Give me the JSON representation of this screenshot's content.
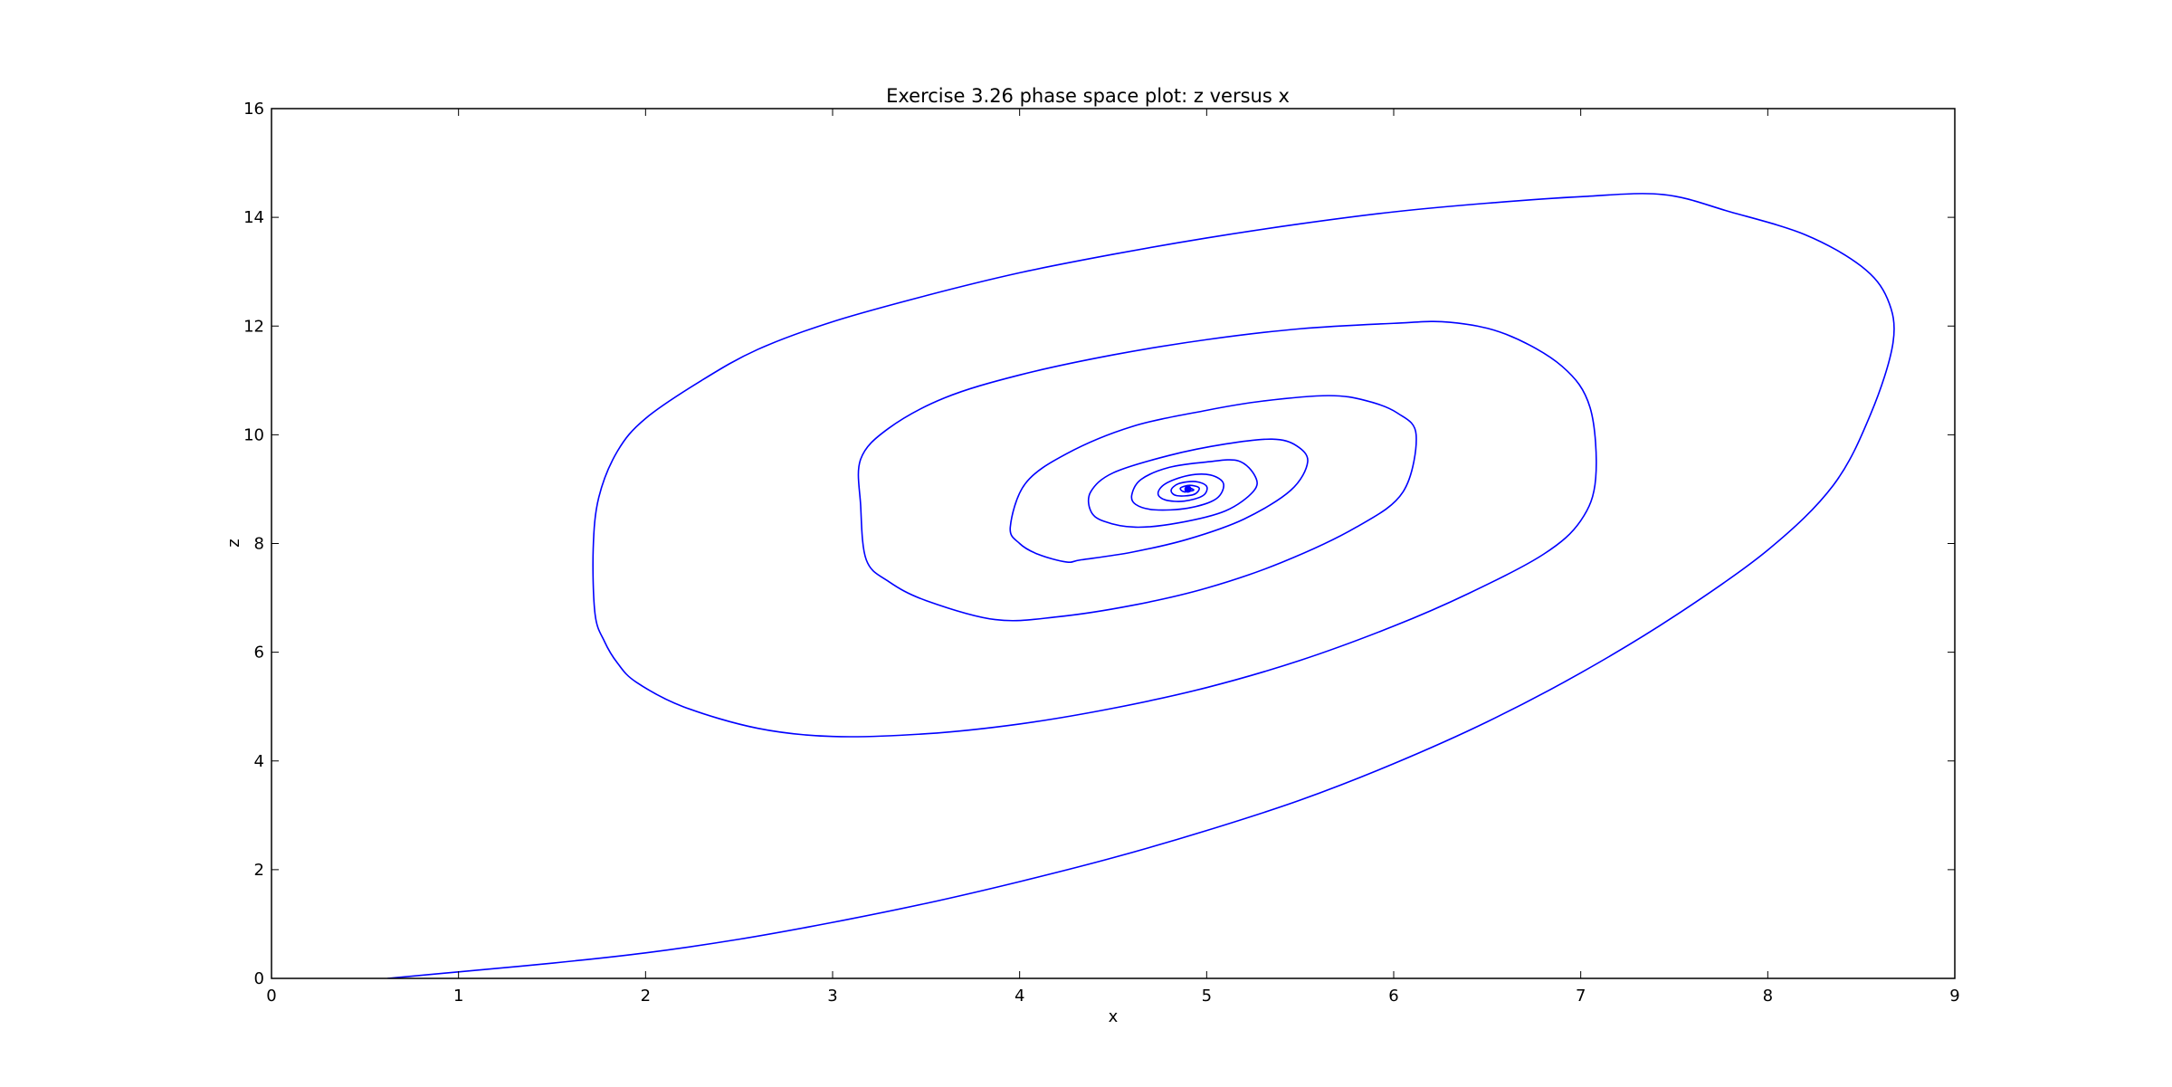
{
  "chart_data": {
    "type": "line",
    "title": "Exercise 3.26 phase space plot: z versus x",
    "xlabel": "x",
    "ylabel": "z",
    "xlim": [
      0,
      9
    ],
    "ylim": [
      0,
      16
    ],
    "xticks": [
      0,
      1,
      2,
      3,
      4,
      5,
      6,
      7,
      8,
      9
    ],
    "yticks": [
      0,
      2,
      4,
      6,
      8,
      10,
      12,
      14,
      16
    ],
    "grid": false,
    "legend": "none",
    "series_color": "#0000ff",
    "series": [
      {
        "start": [
          0.62,
          0.0
        ],
        "equilibrium": [
          4.9,
          9.0
        ],
        "points": [
          [
            0.62,
            0.0
          ],
          [
            1.0,
            0.12
          ],
          [
            1.5,
            0.28
          ],
          [
            2.0,
            0.47
          ],
          [
            2.5,
            0.72
          ],
          [
            3.0,
            1.03
          ],
          [
            3.5,
            1.38
          ],
          [
            4.0,
            1.78
          ],
          [
            4.5,
            2.22
          ],
          [
            5.0,
            2.72
          ],
          [
            5.5,
            3.28
          ],
          [
            6.0,
            3.95
          ],
          [
            6.5,
            4.72
          ],
          [
            7.0,
            5.62
          ],
          [
            7.5,
            6.66
          ],
          [
            8.0,
            7.88
          ],
          [
            8.35,
            9.07
          ],
          [
            8.55,
            10.38
          ],
          [
            8.67,
            11.7
          ],
          [
            8.64,
            12.5
          ],
          [
            8.5,
            13.1
          ],
          [
            8.2,
            13.68
          ],
          [
            7.8,
            14.1
          ],
          [
            7.44,
            14.42
          ],
          [
            7.0,
            14.38
          ],
          [
            6.5,
            14.26
          ],
          [
            6.0,
            14.1
          ],
          [
            5.5,
            13.88
          ],
          [
            5.0,
            13.62
          ],
          [
            4.5,
            13.32
          ],
          [
            4.0,
            12.98
          ],
          [
            3.5,
            12.56
          ],
          [
            3.0,
            12.08
          ],
          [
            2.6,
            11.57
          ],
          [
            2.3,
            11.0
          ],
          [
            2.0,
            10.3
          ],
          [
            1.85,
            9.7
          ],
          [
            1.75,
            8.85
          ],
          [
            1.72,
            7.9
          ],
          [
            1.73,
            6.7
          ],
          [
            1.78,
            6.2
          ],
          [
            1.85,
            5.8
          ],
          [
            1.95,
            5.45
          ],
          [
            2.2,
            5.0
          ],
          [
            2.6,
            4.6
          ],
          [
            3.0,
            4.45
          ],
          [
            3.5,
            4.5
          ],
          [
            4.0,
            4.68
          ],
          [
            4.5,
            4.97
          ],
          [
            5.0,
            5.35
          ],
          [
            5.5,
            5.85
          ],
          [
            6.0,
            6.48
          ],
          [
            6.4,
            7.08
          ],
          [
            6.8,
            7.8
          ],
          [
            7.0,
            8.42
          ],
          [
            7.08,
            9.2
          ],
          [
            7.05,
            10.5
          ],
          [
            6.9,
            11.26
          ],
          [
            6.6,
            11.85
          ],
          [
            6.3,
            12.07
          ],
          [
            6.0,
            12.05
          ],
          [
            5.5,
            11.95
          ],
          [
            5.0,
            11.75
          ],
          [
            4.5,
            11.47
          ],
          [
            4.0,
            11.1
          ],
          [
            3.6,
            10.68
          ],
          [
            3.3,
            10.12
          ],
          [
            3.15,
            9.55
          ],
          [
            3.15,
            8.7
          ],
          [
            3.18,
            7.7
          ],
          [
            3.3,
            7.3
          ],
          [
            3.5,
            6.95
          ],
          [
            3.87,
            6.6
          ],
          [
            4.2,
            6.65
          ],
          [
            4.6,
            6.86
          ],
          [
            5.0,
            7.18
          ],
          [
            5.4,
            7.65
          ],
          [
            5.8,
            8.3
          ],
          [
            6.05,
            8.95
          ],
          [
            6.12,
            10.0
          ],
          [
            6.02,
            10.4
          ],
          [
            5.85,
            10.63
          ],
          [
            5.65,
            10.72
          ],
          [
            5.3,
            10.62
          ],
          [
            5.0,
            10.45
          ],
          [
            4.6,
            10.15
          ],
          [
            4.25,
            9.65
          ],
          [
            4.03,
            9.1
          ],
          [
            3.95,
            8.3
          ],
          [
            4.0,
            8.0
          ],
          [
            4.1,
            7.8
          ],
          [
            4.25,
            7.66
          ],
          [
            4.33,
            7.7
          ],
          [
            4.6,
            7.84
          ],
          [
            4.9,
            8.08
          ],
          [
            5.2,
            8.45
          ],
          [
            5.45,
            8.98
          ],
          [
            5.54,
            9.5
          ],
          [
            5.48,
            9.8
          ],
          [
            5.35,
            9.92
          ],
          [
            5.1,
            9.83
          ],
          [
            4.8,
            9.62
          ],
          [
            4.5,
            9.3
          ],
          [
            4.38,
            8.95
          ],
          [
            4.38,
            8.6
          ],
          [
            4.45,
            8.41
          ],
          [
            4.62,
            8.3
          ],
          [
            4.85,
            8.38
          ],
          [
            5.1,
            8.6
          ],
          [
            5.25,
            8.96
          ],
          [
            5.26,
            9.23
          ],
          [
            5.17,
            9.52
          ],
          [
            5.0,
            9.5
          ],
          [
            4.8,
            9.4
          ],
          [
            4.65,
            9.18
          ],
          [
            4.6,
            8.9
          ],
          [
            4.62,
            8.72
          ],
          [
            4.72,
            8.62
          ],
          [
            4.9,
            8.65
          ],
          [
            5.05,
            8.82
          ],
          [
            5.09,
            9.1
          ],
          [
            5.02,
            9.26
          ],
          [
            4.9,
            9.25
          ],
          [
            4.78,
            9.1
          ],
          [
            4.74,
            8.92
          ],
          [
            4.78,
            8.8
          ],
          [
            4.88,
            8.78
          ],
          [
            4.98,
            8.88
          ],
          [
            5.0,
            9.05
          ],
          [
            4.94,
            9.14
          ],
          [
            4.85,
            9.1
          ],
          [
            4.81,
            8.98
          ],
          [
            4.84,
            8.88
          ],
          [
            4.93,
            8.9
          ],
          [
            4.96,
            9.02
          ],
          [
            4.91,
            9.07
          ],
          [
            4.86,
            9.02
          ],
          [
            4.88,
            8.95
          ],
          [
            4.93,
            8.98
          ],
          [
            4.91,
            9.02
          ],
          [
            4.9,
            9.0
          ]
        ]
      }
    ]
  }
}
